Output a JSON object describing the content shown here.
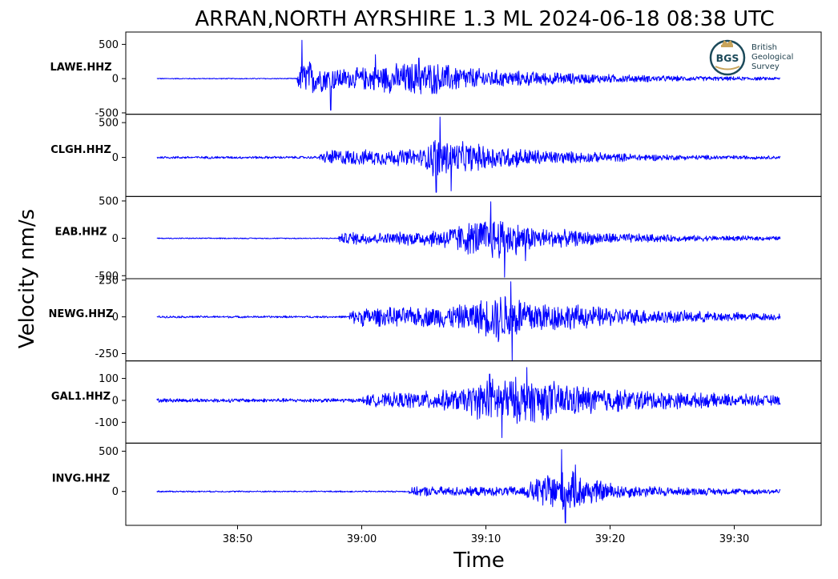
{
  "title": "ARRAN,NORTH AYRSHIRE 1.3 ML   2024-06-18 08:38 UTC",
  "ylabel": "Velocity nm/s",
  "xlabel": "Time",
  "logo": {
    "mark": "BGS",
    "lines": [
      "British",
      "Geological",
      "Survey"
    ]
  },
  "colors": {
    "trace": "#0000ff",
    "axes": "#000000",
    "logo": "#1c4a5a",
    "logo_gold": "#c8a45a"
  },
  "chart_data": {
    "type": "line",
    "chart_count": 6,
    "x_unit": "time (UTC, 2024-06-18 08:mm:ss)",
    "xlim": [
      "08:38:41",
      "08:39:37"
    ],
    "xticks": [
      "38:50",
      "39:00",
      "39:10",
      "39:20",
      "39:30"
    ],
    "xtick_values_s": [
      0,
      10,
      20,
      30,
      40
    ],
    "x_window_s": [
      -9,
      47
    ],
    "record_window_s": [
      -6.5,
      43.7
    ],
    "grid": false,
    "series": [
      {
        "name": "LAWE.HHZ",
        "ylim": [
          -520,
          680
        ],
        "yticks": [
          500,
          0,
          -500
        ],
        "ytick_labels": [
          "500",
          "0",
          "-500"
        ],
        "noise": 8,
        "onset_s": 4.8,
        "envelope": [
          [
            4.8,
            150
          ],
          [
            5.6,
            320
          ],
          [
            6.5,
            220
          ],
          [
            9,
            160
          ],
          [
            12,
            230
          ],
          [
            15,
            280
          ],
          [
            17,
            230
          ],
          [
            20,
            150
          ],
          [
            24,
            110
          ],
          [
            30,
            70
          ],
          [
            36,
            40
          ],
          [
            43.7,
            25
          ]
        ],
        "peaks": [
          [
            5.2,
            560
          ],
          [
            7.5,
            -460
          ],
          [
            11.1,
            350
          ],
          [
            14.6,
            300
          ]
        ]
      },
      {
        "name": "CLGH.HHZ",
        "ylim": [
          -560,
          620
        ],
        "yticks": [
          500,
          0
        ],
        "ytick_labels": [
          "500",
          "0"
        ],
        "noise": 20,
        "onset_s": 6.6,
        "envelope": [
          [
            6.6,
            60
          ],
          [
            7.5,
            130
          ],
          [
            10,
            120
          ],
          [
            13,
            130
          ],
          [
            15,
            140
          ],
          [
            16,
            380
          ],
          [
            17.5,
            250
          ],
          [
            20,
            200
          ],
          [
            25,
            110
          ],
          [
            30,
            70
          ],
          [
            36,
            40
          ],
          [
            43.7,
            25
          ]
        ],
        "peaks": [
          [
            16.3,
            580
          ],
          [
            16.0,
            -500
          ],
          [
            17.2,
            -480
          ]
        ]
      },
      {
        "name": "EAB.HHZ",
        "ylim": [
          -540,
          560
        ],
        "yticks": [
          500,
          0,
          -500
        ],
        "ytick_labels": [
          "500",
          "0",
          "-500"
        ],
        "noise": 8,
        "onset_s": 8.1,
        "envelope": [
          [
            8.1,
            50
          ],
          [
            9,
            100
          ],
          [
            12,
            80
          ],
          [
            16,
            130
          ],
          [
            19,
            260
          ],
          [
            21,
            330
          ],
          [
            23,
            200
          ],
          [
            25,
            140
          ],
          [
            30,
            80
          ],
          [
            36,
            45
          ],
          [
            43.7,
            30
          ]
        ],
        "peaks": [
          [
            20.4,
            490
          ],
          [
            21.5,
            -520
          ],
          [
            23.2,
            -300
          ]
        ]
      },
      {
        "name": "NEWG.HHZ",
        "ylim": [
          -300,
          260
        ],
        "yticks": [
          250,
          0,
          -250
        ],
        "ytick_labels": [
          "250",
          "0",
          "-250"
        ],
        "noise": 8,
        "onset_s": 9.0,
        "envelope": [
          [
            9.0,
            40
          ],
          [
            10,
            70
          ],
          [
            14,
            70
          ],
          [
            18,
            90
          ],
          [
            20,
            140
          ],
          [
            21.5,
            200
          ],
          [
            23,
            150
          ],
          [
            25,
            110
          ],
          [
            30,
            70
          ],
          [
            36,
            45
          ],
          [
            43.7,
            25
          ]
        ],
        "peaks": [
          [
            22.0,
            240
          ],
          [
            22.1,
            -300
          ],
          [
            21.0,
            -170
          ]
        ]
      },
      {
        "name": "GAL1.HHZ",
        "ylim": [
          -195,
          180
        ],
        "yticks": [
          100,
          0,
          -100
        ],
        "ytick_labels": [
          "100",
          "0",
          "-100"
        ],
        "noise": 10,
        "onset_s": 10.0,
        "envelope": [
          [
            -6.5,
            12
          ],
          [
            10.0,
            25
          ],
          [
            13,
            40
          ],
          [
            18,
            55
          ],
          [
            20,
            110
          ],
          [
            22,
            115
          ],
          [
            24,
            110
          ],
          [
            27,
            80
          ],
          [
            30,
            60
          ],
          [
            36,
            40
          ],
          [
            43.7,
            25
          ]
        ],
        "peaks": [
          [
            21.3,
            -170
          ],
          [
            23.3,
            150
          ],
          [
            20.3,
            120
          ]
        ]
      },
      {
        "name": "INVG.HHZ",
        "ylim": [
          -420,
          600
        ],
        "yticks": [
          500,
          0
        ],
        "ytick_labels": [
          "500",
          "0"
        ],
        "noise": 10,
        "onset_s": 13.8,
        "envelope": [
          [
            13.8,
            50
          ],
          [
            15,
            70
          ],
          [
            20,
            60
          ],
          [
            23,
            70
          ],
          [
            25,
            280
          ],
          [
            27,
            260
          ],
          [
            29,
            160
          ],
          [
            31,
            90
          ],
          [
            36,
            55
          ],
          [
            43.7,
            35
          ]
        ],
        "peaks": [
          [
            26.1,
            520
          ],
          [
            26.4,
            -390
          ],
          [
            27.2,
            330
          ]
        ]
      }
    ]
  }
}
